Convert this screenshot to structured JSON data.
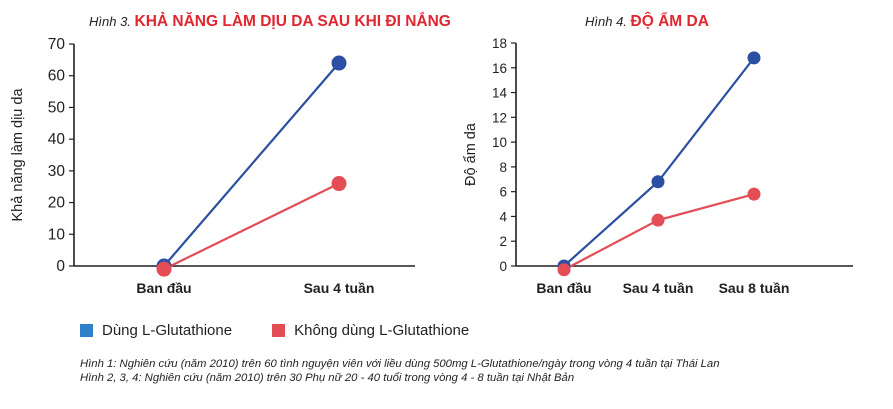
{
  "chart_data": [
    {
      "type": "line",
      "title_prefix": "Hình 3.",
      "title": "KHẢ NĂNG LÀM DỊU DA SAU KHI ĐI NẮNG",
      "xlabel": "",
      "ylabel": "Khả năng làm dịu da",
      "categories": [
        "Ban đầu",
        "Sau 4 tuần"
      ],
      "ylim": [
        0,
        70
      ],
      "yticks": [
        "0",
        "10",
        "20",
        "30",
        "40",
        "50",
        "60",
        "70"
      ],
      "grid": false,
      "series": [
        {
          "name": "Dùng L-Glutathione",
          "color": "#2b4fa2",
          "values": [
            0,
            64
          ]
        },
        {
          "name": "Không dùng L-Glutathione",
          "color": "#e34d55",
          "values": [
            -1,
            26
          ]
        }
      ]
    },
    {
      "type": "line",
      "title_prefix": "Hình 4.",
      "title": "ĐỘ ẨM DA",
      "xlabel": "",
      "ylabel": "Độ ẩm da",
      "categories": [
        "Ban đầu",
        "Sau 4 tuần",
        "Sau 8 tuần"
      ],
      "ylim": [
        0,
        18
      ],
      "yticks": [
        "0",
        "2",
        "4",
        "6",
        "8",
        "10",
        "12",
        "14",
        "16",
        "18"
      ],
      "grid": false,
      "series": [
        {
          "name": "Dùng L-Glutathione",
          "color": "#2b4fa2",
          "values": [
            0,
            6.8,
            16.8
          ]
        },
        {
          "name": "Không dùng L-Glutathione",
          "color": "#e34d55",
          "values": [
            -0.3,
            3.7,
            5.8
          ]
        }
      ]
    }
  ],
  "legend": {
    "items": [
      {
        "label": "Dùng L-Glutathione",
        "color": "#2f80c8"
      },
      {
        "label": "Không dùng L-Glutathione",
        "color": "#e34d55"
      }
    ]
  },
  "notes": [
    "Hình 1: Nghiên cứu (năm 2010) trên 60 tình nguyện viên với liều dùng 500mg L-Glutathione/ngày trong vòng 4 tuần tại Thái Lan",
    "Hình 2, 3, 4: Nghiên cứu (năm 2010) trên 30 Phụ nữ 20 - 40 tuổi trong vòng 4 - 8 tuần tại Nhật Bản"
  ],
  "colors": {
    "title_accent": "#e0262f",
    "axis": "#231f20"
  }
}
